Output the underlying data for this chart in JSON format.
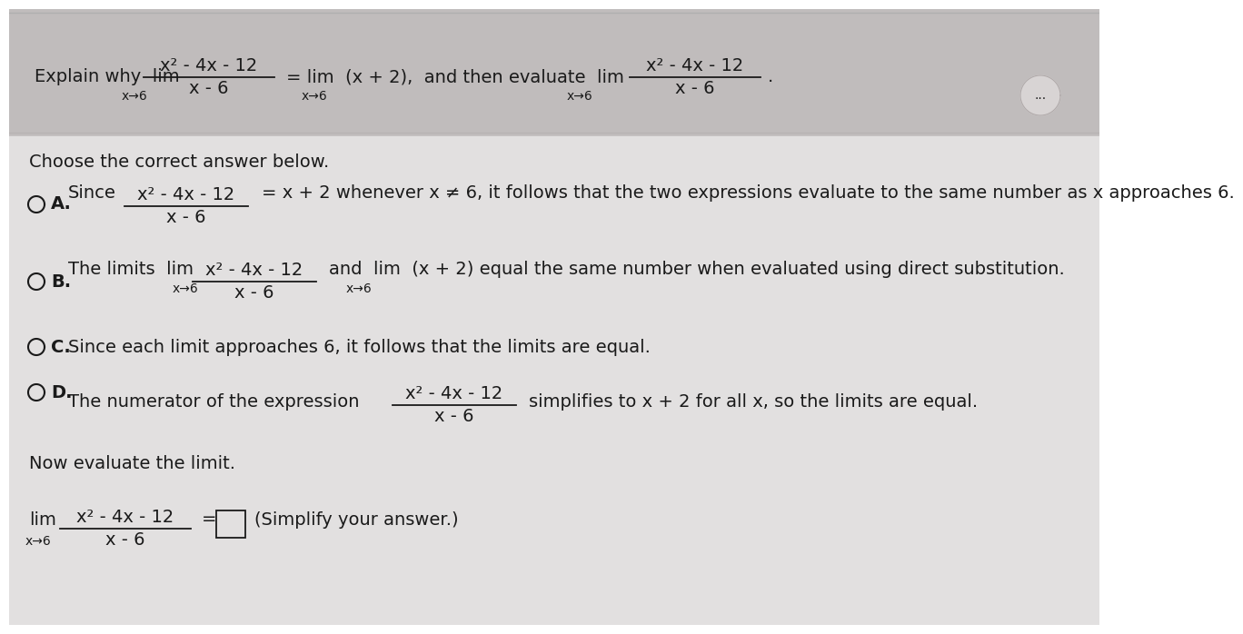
{
  "bg_color_top": "#c8c8c8",
  "bg_color_bottom": "#e8e8e8",
  "text_color": "#1a1a1a",
  "frac_num": "x² - 4x - 12",
  "frac_den": "x - 6",
  "arrow": "x→6",
  "choose_text": "Choose the correct answer below.",
  "opt_A_label": "A.",
  "opt_A_since": "Since",
  "opt_A_rest": "= x + 2 whenever x ≠ 6, it follows that the two expressions evaluate to the same number as x approaches 6.",
  "opt_B_label": "B.",
  "opt_B_text1": "The limits  lim",
  "opt_B_text2": "and  lim  (x + 2) equal the same number when evaluated using direct substitution.",
  "opt_C_label": "C.",
  "opt_C_text": "Since each limit approaches 6, it follows that the limits are equal.",
  "opt_D_label": "D.",
  "opt_D_text1": "The numerator of the expression",
  "opt_D_text2": "simplifies to x + 2 for all x, so the limits are equal.",
  "now_eval": "Now evaluate the limit.",
  "simplify": "(Simplify your answer.)",
  "dots": "...",
  "fs": 14,
  "fs_small": 10,
  "fs_sub": 9
}
